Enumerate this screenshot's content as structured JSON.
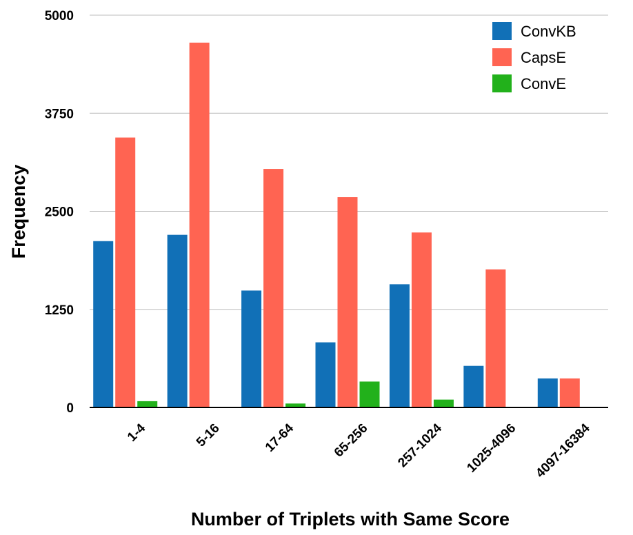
{
  "chart_data": {
    "type": "bar",
    "title": "",
    "xlabel": "Number of Triplets with Same Score",
    "ylabel": "Frequency",
    "ylim": [
      0,
      5000
    ],
    "yticks": [
      0,
      1250,
      2500,
      3750,
      5000
    ],
    "grid": true,
    "legend_position": "top-right",
    "categories": [
      "1-4",
      "5-16",
      "17-64",
      "65-256",
      "257-1024",
      "1025-4096",
      "4097-16384"
    ],
    "series": [
      {
        "name": "ConvKB",
        "color": "#1170b7",
        "values": [
          2120,
          2200,
          1490,
          830,
          1570,
          530,
          370
        ]
      },
      {
        "name": "CapsE",
        "color": "#ff6452",
        "values": [
          3440,
          4650,
          3040,
          2680,
          2230,
          1760,
          370
        ]
      },
      {
        "name": "ConvE",
        "color": "#22b11b",
        "values": [
          80,
          0,
          50,
          330,
          100,
          0,
          0
        ]
      }
    ]
  }
}
